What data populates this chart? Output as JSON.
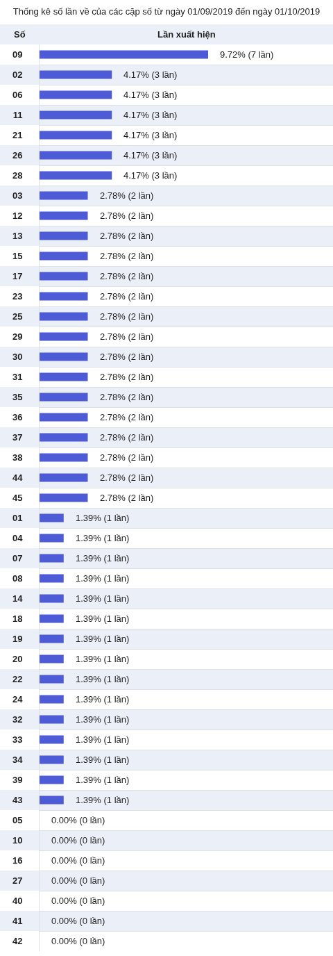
{
  "chart_data": {
    "type": "bar",
    "orientation": "horizontal",
    "title": "Thống kê số lần về của các cặp số từ ngày 01/09/2019 đến ngày 01/10/2019",
    "xlabel": "Lần xuất hiện",
    "ylabel": "Số",
    "categories": [
      "09",
      "02",
      "06",
      "11",
      "21",
      "26",
      "28",
      "03",
      "12",
      "13",
      "15",
      "17",
      "23",
      "25",
      "29",
      "30",
      "31",
      "35",
      "36",
      "37",
      "38",
      "44",
      "45",
      "01",
      "04",
      "07",
      "08",
      "14",
      "18",
      "19",
      "20",
      "22",
      "24",
      "32",
      "33",
      "34",
      "39",
      "43",
      "05",
      "10",
      "16",
      "27",
      "40",
      "41",
      "42"
    ],
    "values": [
      9.72,
      4.17,
      4.17,
      4.17,
      4.17,
      4.17,
      4.17,
      2.78,
      2.78,
      2.78,
      2.78,
      2.78,
      2.78,
      2.78,
      2.78,
      2.78,
      2.78,
      2.78,
      2.78,
      2.78,
      2.78,
      2.78,
      2.78,
      1.39,
      1.39,
      1.39,
      1.39,
      1.39,
      1.39,
      1.39,
      1.39,
      1.39,
      1.39,
      1.39,
      1.39,
      1.39,
      1.39,
      1.39,
      0,
      0,
      0,
      0,
      0,
      0,
      0
    ],
    "value_labels": [
      "9.72% (7 lần)",
      "4.17% (3 lần)",
      "4.17% (3 lần)",
      "4.17% (3 lần)",
      "4.17% (3 lần)",
      "4.17% (3 lần)",
      "4.17% (3 lần)",
      "2.78% (2 lần)",
      "2.78% (2 lần)",
      "2.78% (2 lần)",
      "2.78% (2 lần)",
      "2.78% (2 lần)",
      "2.78% (2 lần)",
      "2.78% (2 lần)",
      "2.78% (2 lần)",
      "2.78% (2 lần)",
      "2.78% (2 lần)",
      "2.78% (2 lần)",
      "2.78% (2 lần)",
      "2.78% (2 lần)",
      "2.78% (2 lần)",
      "2.78% (2 lần)",
      "2.78% (2 lần)",
      "1.39% (1 lần)",
      "1.39% (1 lần)",
      "1.39% (1 lần)",
      "1.39% (1 lần)",
      "1.39% (1 lần)",
      "1.39% (1 lần)",
      "1.39% (1 lần)",
      "1.39% (1 lần)",
      "1.39% (1 lần)",
      "1.39% (1 lần)",
      "1.39% (1 lần)",
      "1.39% (1 lần)",
      "1.39% (1 lần)",
      "1.39% (1 lần)",
      "1.39% (1 lần)",
      "0.00% (0 lần)",
      "0.00% (0 lần)",
      "0.00% (0 lần)",
      "0.00% (0 lần)",
      "0.00% (0 lần)",
      "0.00% (0 lần)",
      "0.00% (0 lần)"
    ],
    "color": "#4e5bd6",
    "grid": "y",
    "tick_labels": "y"
  }
}
